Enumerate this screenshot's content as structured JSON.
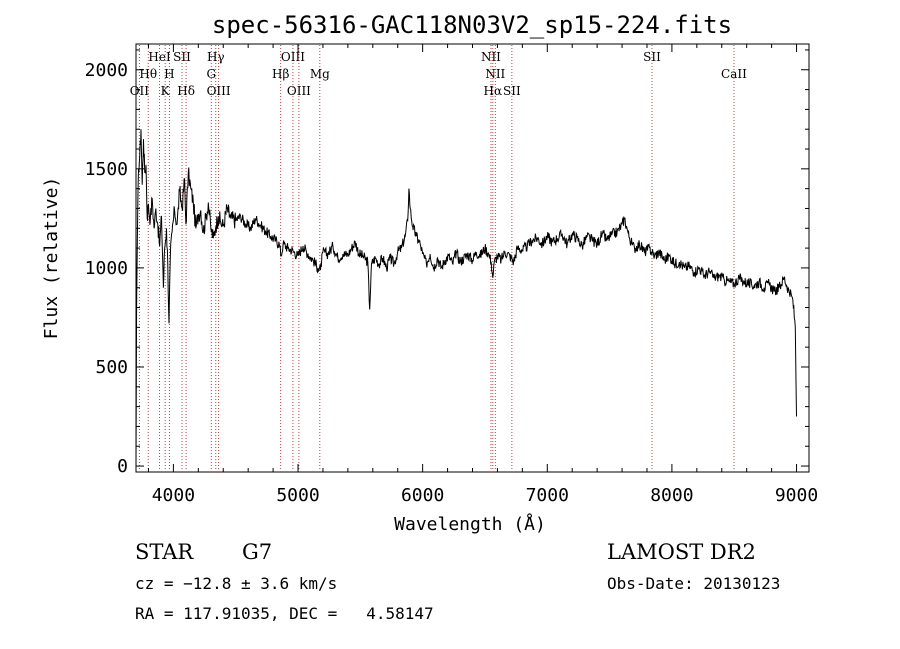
{
  "chart_data": {
    "type": "line",
    "title": "spec-56316-GAC118N03V2_sp15-224.fits",
    "xlabel": "Wavelength (Å)",
    "ylabel": "Flux (relative)",
    "xlim": [
      3700,
      9100
    ],
    "ylim": [
      -30,
      2130
    ],
    "xticks": [
      4000,
      5000,
      6000,
      7000,
      8000,
      9000
    ],
    "yticks": [
      0,
      500,
      1000,
      1500,
      2000
    ],
    "series": [
      {
        "values": [
          [
            3700,
            10
          ],
          [
            3705,
            800
          ],
          [
            3712,
            1200
          ],
          [
            3720,
            1500
          ],
          [
            3730,
            1560
          ],
          [
            3740,
            1700
          ],
          [
            3750,
            1420
          ],
          [
            3760,
            1650
          ],
          [
            3770,
            1480
          ],
          [
            3780,
            1520
          ],
          [
            3790,
            1250
          ],
          [
            3800,
            1320
          ],
          [
            3815,
            1240
          ],
          [
            3830,
            1350
          ],
          [
            3845,
            1200
          ],
          [
            3860,
            1300
          ],
          [
            3875,
            1220
          ],
          [
            3890,
            1110
          ],
          [
            3905,
            1260
          ],
          [
            3920,
            900
          ],
          [
            3930,
            1100
          ],
          [
            3945,
            1200
          ],
          [
            3955,
            1010
          ],
          [
            3965,
            720
          ],
          [
            3975,
            1050
          ],
          [
            3990,
            1180
          ],
          [
            4010,
            1290
          ],
          [
            4030,
            1220
          ],
          [
            4050,
            1390
          ],
          [
            4070,
            1300
          ],
          [
            4090,
            1450
          ],
          [
            4100,
            1220
          ],
          [
            4120,
            1480
          ],
          [
            4140,
            1400
          ],
          [
            4160,
            1330
          ],
          [
            4180,
            1200
          ],
          [
            4200,
            1270
          ],
          [
            4220,
            1290
          ],
          [
            4240,
            1180
          ],
          [
            4260,
            1250
          ],
          [
            4280,
            1330
          ],
          [
            4300,
            1200
          ],
          [
            4320,
            1150
          ],
          [
            4340,
            1210
          ],
          [
            4360,
            1260
          ],
          [
            4380,
            1230
          ],
          [
            4400,
            1210
          ],
          [
            4430,
            1300
          ],
          [
            4460,
            1250
          ],
          [
            4500,
            1240
          ],
          [
            4540,
            1260
          ],
          [
            4580,
            1220
          ],
          [
            4620,
            1200
          ],
          [
            4660,
            1250
          ],
          [
            4700,
            1215
          ],
          [
            4740,
            1185
          ],
          [
            4780,
            1160
          ],
          [
            4820,
            1140
          ],
          [
            4850,
            1120
          ],
          [
            4865,
            1060
          ],
          [
            4880,
            1120
          ],
          [
            4920,
            1100
          ],
          [
            4960,
            1085
          ],
          [
            5000,
            1060
          ],
          [
            5040,
            1110
          ],
          [
            5080,
            1070
          ],
          [
            5120,
            1040
          ],
          [
            5160,
            1000
          ],
          [
            5180,
            990
          ],
          [
            5200,
            1080
          ],
          [
            5240,
            1070
          ],
          [
            5280,
            1110
          ],
          [
            5320,
            1050
          ],
          [
            5360,
            1070
          ],
          [
            5400,
            1065
          ],
          [
            5430,
            1100
          ],
          [
            5460,
            1130
          ],
          [
            5490,
            1070
          ],
          [
            5520,
            1060
          ],
          [
            5560,
            1030
          ],
          [
            5575,
            790
          ],
          [
            5590,
            1020
          ],
          [
            5620,
            1050
          ],
          [
            5650,
            1020
          ],
          [
            5680,
            1050
          ],
          [
            5710,
            1000
          ],
          [
            5740,
            1050
          ],
          [
            5770,
            1020
          ],
          [
            5800,
            1080
          ],
          [
            5830,
            1100
          ],
          [
            5860,
            1160
          ],
          [
            5880,
            1240
          ],
          [
            5890,
            1400
          ],
          [
            5900,
            1300
          ],
          [
            5920,
            1210
          ],
          [
            5950,
            1160
          ],
          [
            5980,
            1120
          ],
          [
            6000,
            1070
          ],
          [
            6030,
            1020
          ],
          [
            6060,
            1070
          ],
          [
            6090,
            1000
          ],
          [
            6120,
            1050
          ],
          [
            6150,
            1000
          ],
          [
            6180,
            1040
          ],
          [
            6210,
            1060
          ],
          [
            6240,
            1020
          ],
          [
            6270,
            1080
          ],
          [
            6300,
            1030
          ],
          [
            6330,
            1050
          ],
          [
            6360,
            1070
          ],
          [
            6400,
            1040
          ],
          [
            6430,
            1080
          ],
          [
            6460,
            1060
          ],
          [
            6500,
            1100
          ],
          [
            6530,
            1070
          ],
          [
            6550,
            1030
          ],
          [
            6563,
            950
          ],
          [
            6575,
            1030
          ],
          [
            6600,
            1060
          ],
          [
            6630,
            1040
          ],
          [
            6660,
            1080
          ],
          [
            6700,
            1060
          ],
          [
            6730,
            1030
          ],
          [
            6760,
            1100
          ],
          [
            6800,
            1090
          ],
          [
            6840,
            1110
          ],
          [
            6880,
            1140
          ],
          [
            6920,
            1150
          ],
          [
            6960,
            1120
          ],
          [
            7000,
            1160
          ],
          [
            7040,
            1130
          ],
          [
            7080,
            1150
          ],
          [
            7120,
            1170
          ],
          [
            7160,
            1120
          ],
          [
            7200,
            1170
          ],
          [
            7240,
            1150
          ],
          [
            7280,
            1110
          ],
          [
            7320,
            1160
          ],
          [
            7360,
            1140
          ],
          [
            7400,
            1120
          ],
          [
            7440,
            1170
          ],
          [
            7480,
            1140
          ],
          [
            7520,
            1170
          ],
          [
            7560,
            1180
          ],
          [
            7600,
            1220
          ],
          [
            7620,
            1250
          ],
          [
            7640,
            1200
          ],
          [
            7660,
            1150
          ],
          [
            7680,
            1120
          ],
          [
            7700,
            1100
          ],
          [
            7740,
            1120
          ],
          [
            7780,
            1080
          ],
          [
            7820,
            1100
          ],
          [
            7860,
            1060
          ],
          [
            7900,
            1080
          ],
          [
            7940,
            1040
          ],
          [
            7980,
            1060
          ],
          [
            8020,
            1020
          ],
          [
            8060,
            1030
          ],
          [
            8100,
            1000
          ],
          [
            8140,
            1010
          ],
          [
            8180,
            980
          ],
          [
            8220,
            1000
          ],
          [
            8260,
            960
          ],
          [
            8300,
            980
          ],
          [
            8340,
            950
          ],
          [
            8380,
            960
          ],
          [
            8420,
            940
          ],
          [
            8460,
            930
          ],
          [
            8500,
            920
          ],
          [
            8540,
            950
          ],
          [
            8580,
            930
          ],
          [
            8620,
            920
          ],
          [
            8660,
            910
          ],
          [
            8700,
            930
          ],
          [
            8740,
            900
          ],
          [
            8780,
            920
          ],
          [
            8820,
            880
          ],
          [
            8860,
            900
          ],
          [
            8900,
            950
          ],
          [
            8940,
            880
          ],
          [
            8970,
            840
          ],
          [
            8990,
            700
          ],
          [
            9000,
            250
          ]
        ]
      }
    ],
    "lines": [
      {
        "label": "HeI",
        "wave": 3889,
        "row": 0
      },
      {
        "label": "SII",
        "wave": 4069,
        "row": 0
      },
      {
        "label": "Hγ",
        "wave": 4340,
        "row": 0
      },
      {
        "label": "OIII",
        "wave": 4959,
        "row": 0
      },
      {
        "label": "NII",
        "wave": 6548,
        "row": 0
      },
      {
        "label": "SII",
        "wave": 7840,
        "row": 0
      },
      {
        "label": "Hθ",
        "wave": 3798,
        "row": 1
      },
      {
        "label": "H",
        "wave": 3968,
        "row": 1
      },
      {
        "label": "G",
        "wave": 4304,
        "row": 1
      },
      {
        "label": "Hβ",
        "wave": 4861,
        "row": 1
      },
      {
        "label": "Mg",
        "wave": 5175,
        "row": 1
      },
      {
        "label": "NII",
        "wave": 6583,
        "row": 1
      },
      {
        "label": "CaII",
        "wave": 8498,
        "row": 1
      },
      {
        "label": "OII",
        "wave": 3727,
        "row": 2
      },
      {
        "label": "K",
        "wave": 3934,
        "row": 2
      },
      {
        "label": "Hδ",
        "wave": 4102,
        "row": 2
      },
      {
        "label": "OIII",
        "wave": 4363,
        "row": 2
      },
      {
        "label": "OIII",
        "wave": 5007,
        "row": 2
      },
      {
        "label": "Hα",
        "wave": 6563,
        "row": 2
      },
      {
        "label": "SII",
        "wave": 6716,
        "row": 2
      }
    ]
  },
  "info": {
    "class_label": "STAR",
    "subclass": "G7",
    "cz": "cz = −12.8 ± 3.6 km/s",
    "radec": "RA = 117.91035, DEC =   4.58147",
    "survey": "LAMOST DR2",
    "obs_date": "Obs-Date: 20130123"
  }
}
